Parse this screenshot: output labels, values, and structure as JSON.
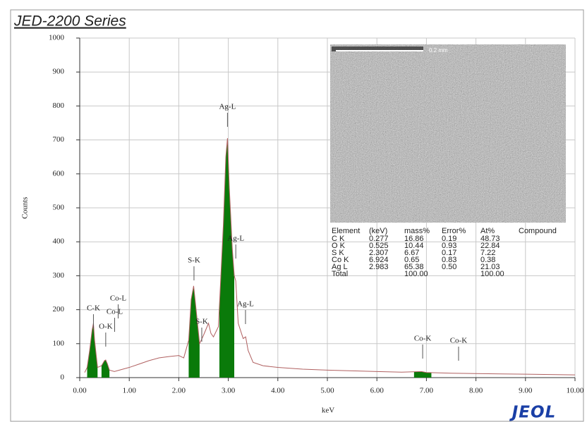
{
  "header": {
    "title": "JED-2200 Series",
    "logo": "JEOL"
  },
  "image": {
    "scale_label": "0.2 mm"
  },
  "table": {
    "columns": [
      "Element",
      "(keV)",
      "mass%",
      "Error%",
      "At%",
      "Compound"
    ],
    "rows": [
      [
        "C  K",
        "0.277",
        "16.86",
        "0.19",
        "48.73",
        null
      ],
      [
        "O  K",
        "0.525",
        "10.44",
        "0.93",
        "22.84",
        null
      ],
      [
        "S  K",
        "2.307",
        "6.67",
        "0.17",
        "7.22",
        null
      ],
      [
        "Co K",
        "6.924",
        "0.65",
        "0.83",
        "0.38",
        null
      ],
      [
        "Ag L",
        "2.983",
        "65.38",
        "0.50",
        "21.03",
        null
      ],
      [
        "Total",
        null,
        "100.00",
        null,
        "100.00",
        null
      ]
    ]
  },
  "chart_data": {
    "type": "line",
    "x_label": "keV",
    "y_label": "Counts",
    "xlim": [
      0,
      10
    ],
    "ylim": [
      0,
      1000
    ],
    "xticks": [
      {
        "value": 0,
        "label": "0.00"
      },
      {
        "value": 1,
        "label": "1.00"
      },
      {
        "value": 2,
        "label": "2.00"
      },
      {
        "value": 3,
        "label": "3.00"
      },
      {
        "value": 4,
        "label": "4.00"
      },
      {
        "value": 5,
        "label": "5.00"
      },
      {
        "value": 6,
        "label": "6.00"
      },
      {
        "value": 7,
        "label": "7.00"
      },
      {
        "value": 8,
        "label": "8.00"
      },
      {
        "value": 9,
        "label": "9.00"
      },
      {
        "value": 10,
        "label": "10.00"
      }
    ],
    "yticks": [
      0,
      100,
      200,
      300,
      400,
      500,
      600,
      700,
      800,
      900,
      1000
    ],
    "grid": true,
    "fill_color": "#0a7a0a",
    "filled_ranges": [
      [
        0.15,
        0.36
      ],
      [
        0.44,
        0.6
      ],
      [
        2.2,
        2.42
      ],
      [
        2.82,
        3.12
      ],
      [
        6.75,
        7.1
      ]
    ],
    "series": [
      {
        "color": "#b06060",
        "x": [
          0.1,
          0.15,
          0.2,
          0.25,
          0.277,
          0.3,
          0.36,
          0.44,
          0.5,
          0.525,
          0.56,
          0.6,
          0.7,
          0.8,
          1.0,
          1.2,
          1.4,
          1.6,
          1.8,
          2.0,
          2.1,
          2.2,
          2.25,
          2.3,
          2.35,
          2.42,
          2.5,
          2.6,
          2.65,
          2.7,
          2.8,
          2.85,
          2.9,
          2.95,
          2.983,
          3.02,
          3.08,
          3.12,
          3.15,
          3.2,
          3.3,
          3.35,
          3.4,
          3.5,
          3.7,
          4.0,
          4.5,
          5.0,
          5.5,
          6.0,
          6.5,
          6.9,
          7.0,
          7.5,
          8.0,
          8.5,
          9.0,
          9.5,
          10.0
        ],
        "values": [
          15,
          30,
          80,
          140,
          160,
          110,
          30,
          35,
          50,
          52,
          40,
          22,
          18,
          22,
          30,
          40,
          50,
          58,
          62,
          65,
          58,
          110,
          230,
          270,
          200,
          100,
          125,
          160,
          130,
          120,
          150,
          300,
          450,
          650,
          705,
          560,
          380,
          300,
          285,
          160,
          115,
          120,
          80,
          45,
          35,
          30,
          25,
          22,
          20,
          18,
          16,
          18,
          15,
          13,
          12,
          11,
          10,
          9,
          8
        ]
      }
    ],
    "annotations": [
      {
        "text": "C-K",
        "x": 0.277
      },
      {
        "text": "Co-L",
        "x": 0.776
      },
      {
        "text": "Co-L",
        "x": 0.705
      },
      {
        "text": "O-K",
        "x": 0.525
      },
      {
        "text": "S-K",
        "x": 2.307
      },
      {
        "text": "S-K",
        "x": 2.464
      },
      {
        "text": "Ag-L",
        "x": 2.983
      },
      {
        "text": "Ag-L",
        "x": 3.151
      },
      {
        "text": "Ag-L",
        "x": 3.347
      },
      {
        "text": "Co-K",
        "x": 6.924
      },
      {
        "text": "Co-K",
        "x": 7.649
      }
    ]
  }
}
